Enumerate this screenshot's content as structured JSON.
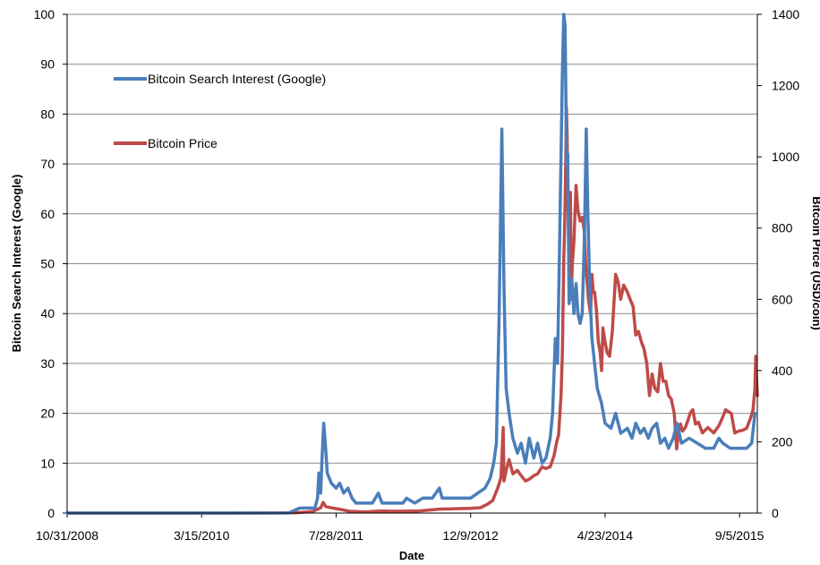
{
  "chart_data": {
    "type": "line",
    "xlabel": "Date",
    "ylabel_left": "Bitcoin Search Interest (Google)",
    "ylabel_right": "Bitcoin Price (USD/coin)",
    "x_axis": {
      "range": [
        "10/31/2008",
        "11/10/2015"
      ],
      "tick_labels": [
        "10/31/2008",
        "3/15/2010",
        "7/28/2011",
        "12/9/2012",
        "4/23/2014",
        "9/5/2015"
      ]
    },
    "y_left": {
      "range": [
        0,
        100
      ],
      "ticks": [
        0,
        10,
        20,
        30,
        40,
        50,
        60,
        70,
        80,
        90,
        100
      ]
    },
    "y_right": {
      "range": [
        0,
        1400
      ],
      "ticks": [
        0,
        200,
        400,
        600,
        800,
        1000,
        1200,
        1400
      ]
    },
    "grid": "horizontal",
    "legend": "top-left",
    "series": [
      {
        "name": "Bitcoin Search Interest (Google)",
        "axis": "left",
        "color": "#4a7ebb",
        "points": [
          [
            "2008-10-31",
            0
          ],
          [
            "2009-03-01",
            0
          ],
          [
            "2010-06-01",
            0
          ],
          [
            "2011-02-01",
            0
          ],
          [
            "2011-03-15",
            1
          ],
          [
            "2011-04-15",
            1
          ],
          [
            "2011-05-10",
            1
          ],
          [
            "2011-05-20",
            3
          ],
          [
            "2011-05-25",
            8
          ],
          [
            "2011-06-01",
            4
          ],
          [
            "2011-06-05",
            10
          ],
          [
            "2011-06-12",
            18
          ],
          [
            "2011-06-18",
            14
          ],
          [
            "2011-06-25",
            8
          ],
          [
            "2011-07-10",
            6
          ],
          [
            "2011-07-28",
            5
          ],
          [
            "2011-08-10",
            6
          ],
          [
            "2011-08-25",
            4
          ],
          [
            "2011-09-10",
            5
          ],
          [
            "2011-09-25",
            3
          ],
          [
            "2011-10-10",
            2
          ],
          [
            "2011-11-10",
            2
          ],
          [
            "2011-12-10",
            2
          ],
          [
            "2012-01-01",
            4
          ],
          [
            "2012-01-15",
            2
          ],
          [
            "2012-03-01",
            2
          ],
          [
            "2012-04-01",
            2
          ],
          [
            "2012-04-15",
            3
          ],
          [
            "2012-05-15",
            2
          ],
          [
            "2012-06-15",
            3
          ],
          [
            "2012-07-20",
            3
          ],
          [
            "2012-08-15",
            5
          ],
          [
            "2012-08-25",
            3
          ],
          [
            "2012-10-01",
            3
          ],
          [
            "2012-11-01",
            3
          ],
          [
            "2012-12-09",
            3
          ],
          [
            "2013-01-05",
            4
          ],
          [
            "2013-02-01",
            5
          ],
          [
            "2013-02-20",
            7
          ],
          [
            "2013-03-05",
            10
          ],
          [
            "2013-03-15",
            14
          ],
          [
            "2013-03-25",
            40
          ],
          [
            "2013-04-04",
            77
          ],
          [
            "2013-04-12",
            45
          ],
          [
            "2013-04-20",
            25
          ],
          [
            "2013-05-01",
            20
          ],
          [
            "2013-05-15",
            15
          ],
          [
            "2013-06-01",
            12
          ],
          [
            "2013-06-15",
            14
          ],
          [
            "2013-07-01",
            10
          ],
          [
            "2013-07-15",
            15
          ],
          [
            "2013-08-01",
            11
          ],
          [
            "2013-08-15",
            14
          ],
          [
            "2013-09-01",
            10
          ],
          [
            "2013-09-15",
            11
          ],
          [
            "2013-10-01",
            15
          ],
          [
            "2013-10-10",
            20
          ],
          [
            "2013-10-20",
            35
          ],
          [
            "2013-10-28",
            30
          ],
          [
            "2013-11-05",
            55
          ],
          [
            "2013-11-15",
            88
          ],
          [
            "2013-11-20",
            100
          ],
          [
            "2013-11-25",
            98
          ],
          [
            "2013-12-01",
            70
          ],
          [
            "2013-12-05",
            72
          ],
          [
            "2013-12-10",
            42
          ],
          [
            "2013-12-15",
            45
          ],
          [
            "2013-12-20",
            47
          ],
          [
            "2013-12-28",
            40
          ],
          [
            "2014-01-05",
            46
          ],
          [
            "2014-01-12",
            40
          ],
          [
            "2014-01-20",
            38
          ],
          [
            "2014-01-28",
            40
          ],
          [
            "2014-02-05",
            55
          ],
          [
            "2014-02-12",
            77
          ],
          [
            "2014-02-18",
            60
          ],
          [
            "2014-02-25",
            45
          ],
          [
            "2014-03-05",
            35
          ],
          [
            "2014-03-15",
            30
          ],
          [
            "2014-03-25",
            25
          ],
          [
            "2014-04-10",
            22
          ],
          [
            "2014-04-23",
            18
          ],
          [
            "2014-05-15",
            17
          ],
          [
            "2014-06-01",
            20
          ],
          [
            "2014-06-20",
            16
          ],
          [
            "2014-07-15",
            17
          ],
          [
            "2014-08-01",
            15
          ],
          [
            "2014-08-15",
            18
          ],
          [
            "2014-09-01",
            16
          ],
          [
            "2014-09-15",
            17
          ],
          [
            "2014-10-01",
            15
          ],
          [
            "2014-10-15",
            17
          ],
          [
            "2014-11-01",
            18
          ],
          [
            "2014-11-15",
            14
          ],
          [
            "2014-12-01",
            15
          ],
          [
            "2014-12-15",
            13
          ],
          [
            "2015-01-01",
            15
          ],
          [
            "2015-01-15",
            18
          ],
          [
            "2015-02-01",
            14
          ],
          [
            "2015-03-01",
            15
          ],
          [
            "2015-04-01",
            14
          ],
          [
            "2015-05-01",
            13
          ],
          [
            "2015-06-01",
            13
          ],
          [
            "2015-06-20",
            15
          ],
          [
            "2015-07-05",
            14
          ],
          [
            "2015-08-01",
            13
          ],
          [
            "2015-09-01",
            13
          ],
          [
            "2015-10-01",
            13
          ],
          [
            "2015-10-20",
            14
          ],
          [
            "2015-11-01",
            20
          ]
        ]
      },
      {
        "name": "Bitcoin Price",
        "axis": "right",
        "color": "#be4b48",
        "points": [
          [
            "2008-10-31",
            0
          ],
          [
            "2010-07-15",
            0
          ],
          [
            "2010-12-01",
            0.2
          ],
          [
            "2011-03-01",
            1
          ],
          [
            "2011-05-01",
            4
          ],
          [
            "2011-06-01",
            15
          ],
          [
            "2011-06-10",
            30
          ],
          [
            "2011-06-20",
            18
          ],
          [
            "2011-07-15",
            14
          ],
          [
            "2011-08-15",
            10
          ],
          [
            "2011-09-15",
            5
          ],
          [
            "2011-11-15",
            3
          ],
          [
            "2012-01-10",
            6
          ],
          [
            "2012-03-01",
            5
          ],
          [
            "2012-06-01",
            6
          ],
          [
            "2012-08-15",
            11
          ],
          [
            "2012-10-01",
            12
          ],
          [
            "2012-12-09",
            13
          ],
          [
            "2013-01-15",
            15
          ],
          [
            "2013-02-10",
            25
          ],
          [
            "2013-03-01",
            35
          ],
          [
            "2013-03-20",
            70
          ],
          [
            "2013-04-01",
            100
          ],
          [
            "2013-04-09",
            240
          ],
          [
            "2013-04-12",
            90
          ],
          [
            "2013-04-20",
            120
          ],
          [
            "2013-05-01",
            150
          ],
          [
            "2013-05-15",
            110
          ],
          [
            "2013-06-01",
            120
          ],
          [
            "2013-06-15",
            105
          ],
          [
            "2013-07-01",
            90
          ],
          [
            "2013-07-15",
            95
          ],
          [
            "2013-08-01",
            105
          ],
          [
            "2013-08-15",
            110
          ],
          [
            "2013-09-01",
            130
          ],
          [
            "2013-09-15",
            125
          ],
          [
            "2013-10-01",
            130
          ],
          [
            "2013-10-15",
            160
          ],
          [
            "2013-10-25",
            200
          ],
          [
            "2013-11-01",
            220
          ],
          [
            "2013-11-10",
            330
          ],
          [
            "2013-11-15",
            450
          ],
          [
            "2013-11-20",
            700
          ],
          [
            "2013-11-24",
            820
          ],
          [
            "2013-11-28",
            1000
          ],
          [
            "2013-11-30",
            1140
          ],
          [
            "2013-12-03",
            1050
          ],
          [
            "2013-12-06",
            850
          ],
          [
            "2013-12-10",
            900
          ],
          [
            "2013-12-15",
            900
          ],
          [
            "2013-12-18",
            600
          ],
          [
            "2013-12-22",
            700
          ],
          [
            "2013-12-28",
            760
          ],
          [
            "2014-01-05",
            920
          ],
          [
            "2014-01-12",
            850
          ],
          [
            "2014-01-20",
            820
          ],
          [
            "2014-01-28",
            830
          ],
          [
            "2014-02-05",
            790
          ],
          [
            "2014-02-10",
            700
          ],
          [
            "2014-02-20",
            600
          ],
          [
            "2014-02-28",
            560
          ],
          [
            "2014-03-05",
            670
          ],
          [
            "2014-03-10",
            620
          ],
          [
            "2014-03-15",
            620
          ],
          [
            "2014-03-22",
            570
          ],
          [
            "2014-03-29",
            480
          ],
          [
            "2014-04-05",
            450
          ],
          [
            "2014-04-10",
            400
          ],
          [
            "2014-04-15",
            520
          ],
          [
            "2014-04-23",
            480
          ],
          [
            "2014-05-01",
            450
          ],
          [
            "2014-05-10",
            440
          ],
          [
            "2014-05-20",
            510
          ],
          [
            "2014-06-01",
            670
          ],
          [
            "2014-06-10",
            650
          ],
          [
            "2014-06-20",
            600
          ],
          [
            "2014-07-01",
            640
          ],
          [
            "2014-07-15",
            620
          ],
          [
            "2014-07-25",
            600
          ],
          [
            "2014-08-05",
            580
          ],
          [
            "2014-08-15",
            500
          ],
          [
            "2014-08-25",
            510
          ],
          [
            "2014-09-05",
            480
          ],
          [
            "2014-09-15",
            460
          ],
          [
            "2014-09-25",
            420
          ],
          [
            "2014-10-05",
            330
          ],
          [
            "2014-10-15",
            390
          ],
          [
            "2014-10-25",
            350
          ],
          [
            "2014-11-05",
            340
          ],
          [
            "2014-11-15",
            420
          ],
          [
            "2014-11-25",
            370
          ],
          [
            "2014-12-05",
            370
          ],
          [
            "2014-12-15",
            330
          ],
          [
            "2014-12-25",
            320
          ],
          [
            "2015-01-05",
            280
          ],
          [
            "2015-01-14",
            180
          ],
          [
            "2015-01-20",
            220
          ],
          [
            "2015-01-28",
            250
          ],
          [
            "2015-02-05",
            230
          ],
          [
            "2015-02-15",
            240
          ],
          [
            "2015-02-25",
            260
          ],
          [
            "2015-03-05",
            280
          ],
          [
            "2015-03-15",
            290
          ],
          [
            "2015-03-25",
            250
          ],
          [
            "2015-04-05",
            255
          ],
          [
            "2015-04-20",
            225
          ],
          [
            "2015-05-10",
            240
          ],
          [
            "2015-06-01",
            225
          ],
          [
            "2015-06-20",
            245
          ],
          [
            "2015-07-05",
            270
          ],
          [
            "2015-07-15",
            290
          ],
          [
            "2015-07-25",
            285
          ],
          [
            "2015-08-05",
            280
          ],
          [
            "2015-08-18",
            225
          ],
          [
            "2015-09-01",
            230
          ],
          [
            "2015-09-15",
            232
          ],
          [
            "2015-10-01",
            238
          ],
          [
            "2015-10-15",
            265
          ],
          [
            "2015-10-25",
            290
          ],
          [
            "2015-11-01",
            350
          ],
          [
            "2015-11-04",
            440
          ],
          [
            "2015-11-07",
            380
          ],
          [
            "2015-11-10",
            330
          ]
        ]
      }
    ]
  }
}
